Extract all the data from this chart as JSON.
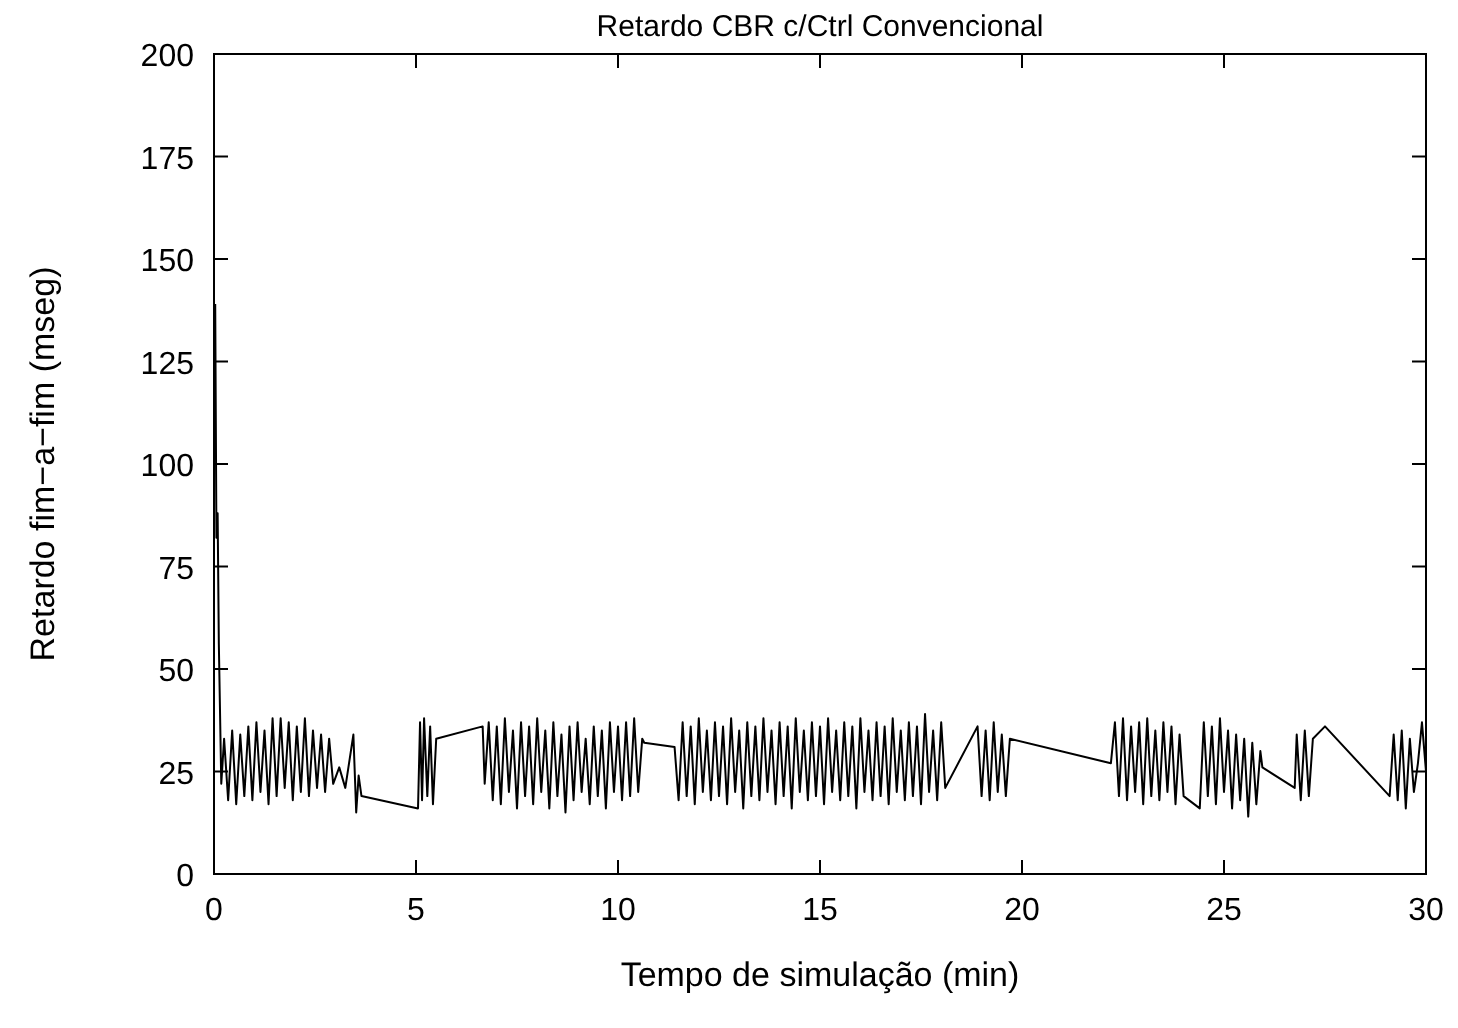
{
  "chart_data": {
    "type": "line",
    "title": "Retardo CBR c/Ctrl Convencional",
    "xlabel": "Tempo de simulação (min)",
    "ylabel": "Retardo fim−a−fim (mseg)",
    "xlim": [
      0,
      30
    ],
    "ylim": [
      0,
      200
    ],
    "xticks": [
      0,
      5,
      10,
      15,
      20,
      25,
      30
    ],
    "yticks": [
      0,
      25,
      50,
      75,
      100,
      125,
      150,
      175,
      200
    ],
    "grid": false,
    "marker": "none",
    "line_style": "solid",
    "series": [
      {
        "color": "#000000",
        "x": [
          0.03,
          0.06,
          0.09,
          0.12,
          0.18,
          0.25,
          0.35,
          0.45,
          0.55,
          0.65,
          0.75,
          0.85,
          0.95,
          1.05,
          1.15,
          1.25,
          1.35,
          1.45,
          1.55,
          1.65,
          1.75,
          1.85,
          1.95,
          2.05,
          2.15,
          2.25,
          2.35,
          2.45,
          2.55,
          2.65,
          2.75,
          2.85,
          2.95,
          3.1,
          3.25,
          3.45,
          3.52,
          3.58,
          3.65,
          5.05,
          5.1,
          5.15,
          5.2,
          5.28,
          5.35,
          5.42,
          5.5,
          6.65,
          6.7,
          6.8,
          6.9,
          7.0,
          7.1,
          7.2,
          7.3,
          7.4,
          7.5,
          7.6,
          7.7,
          7.8,
          7.9,
          8.0,
          8.1,
          8.2,
          8.3,
          8.4,
          8.5,
          8.6,
          8.7,
          8.8,
          8.9,
          9.0,
          9.1,
          9.2,
          9.3,
          9.4,
          9.5,
          9.6,
          9.7,
          9.8,
          9.9,
          10.0,
          10.1,
          10.2,
          10.3,
          10.4,
          10.5,
          10.6,
          10.65,
          11.4,
          11.5,
          11.6,
          11.7,
          11.8,
          11.9,
          12.0,
          12.1,
          12.2,
          12.3,
          12.4,
          12.5,
          12.6,
          12.7,
          12.8,
          12.9,
          13.0,
          13.1,
          13.2,
          13.3,
          13.4,
          13.5,
          13.6,
          13.7,
          13.8,
          13.9,
          14.0,
          14.1,
          14.2,
          14.3,
          14.4,
          14.5,
          14.6,
          14.7,
          14.8,
          14.9,
          15.0,
          15.1,
          15.2,
          15.3,
          15.4,
          15.5,
          15.6,
          15.7,
          15.8,
          15.9,
          16.0,
          16.1,
          16.2,
          16.3,
          16.4,
          16.5,
          16.6,
          16.7,
          16.8,
          16.9,
          17.0,
          17.1,
          17.2,
          17.3,
          17.4,
          17.5,
          17.6,
          17.7,
          17.8,
          17.9,
          18.0,
          18.1,
          18.9,
          19.0,
          19.1,
          19.2,
          19.3,
          19.4,
          19.5,
          19.6,
          19.7,
          22.2,
          22.3,
          22.4,
          22.5,
          22.6,
          22.7,
          22.8,
          22.9,
          23.0,
          23.1,
          23.2,
          23.3,
          23.4,
          23.5,
          23.6,
          23.7,
          23.8,
          23.9,
          24.0,
          24.4,
          24.5,
          24.6,
          24.7,
          24.8,
          24.9,
          25.0,
          25.1,
          25.2,
          25.3,
          25.4,
          25.5,
          25.6,
          25.7,
          25.8,
          25.9,
          25.95,
          26.75,
          26.8,
          26.9,
          27.0,
          27.1,
          27.2,
          27.5,
          29.1,
          29.2,
          29.3,
          29.4,
          29.5,
          29.6,
          29.7,
          29.8,
          29.9,
          30.0
        ],
        "values": [
          139,
          82,
          88,
          56,
          22,
          33,
          18,
          35,
          17,
          34,
          19,
          36,
          18,
          37,
          20,
          35,
          17,
          38,
          19,
          38,
          21,
          37,
          18,
          36,
          20,
          38,
          19,
          35,
          21,
          34,
          20,
          33,
          22,
          26,
          21,
          34,
          15,
          24,
          19,
          16,
          37,
          18,
          38,
          19,
          36,
          17,
          33,
          36,
          22,
          37,
          18,
          36,
          17,
          38,
          20,
          35,
          16,
          37,
          19,
          36,
          17,
          38,
          20,
          35,
          16,
          37,
          19,
          34,
          15,
          36,
          18,
          37,
          20,
          33,
          17,
          36,
          19,
          35,
          16,
          37,
          20,
          36,
          18,
          37,
          19,
          38,
          20,
          33,
          32,
          31,
          18,
          37,
          19,
          36,
          17,
          38,
          20,
          35,
          18,
          37,
          19,
          36,
          17,
          38,
          20,
          35,
          16,
          37,
          19,
          36,
          18,
          38,
          20,
          35,
          17,
          37,
          19,
          36,
          16,
          38,
          20,
          35,
          18,
          37,
          19,
          36,
          17,
          38,
          20,
          35,
          18,
          37,
          19,
          36,
          16,
          38,
          20,
          35,
          18,
          37,
          19,
          36,
          17,
          38,
          20,
          35,
          18,
          37,
          19,
          36,
          17,
          39,
          20,
          35,
          18,
          37,
          21,
          36,
          19,
          35,
          18,
          37,
          20,
          34,
          19,
          33,
          27,
          37,
          19,
          38,
          18,
          36,
          20,
          37,
          17,
          38,
          19,
          35,
          18,
          37,
          20,
          36,
          17,
          34,
          19,
          16,
          37,
          19,
          36,
          17,
          38,
          20,
          35,
          16,
          34,
          18,
          33,
          14,
          32,
          17,
          30,
          26,
          21,
          34,
          18,
          35,
          19,
          33,
          36,
          19,
          34,
          18,
          35,
          16,
          33,
          20,
          27,
          37,
          25
        ]
      }
    ]
  }
}
